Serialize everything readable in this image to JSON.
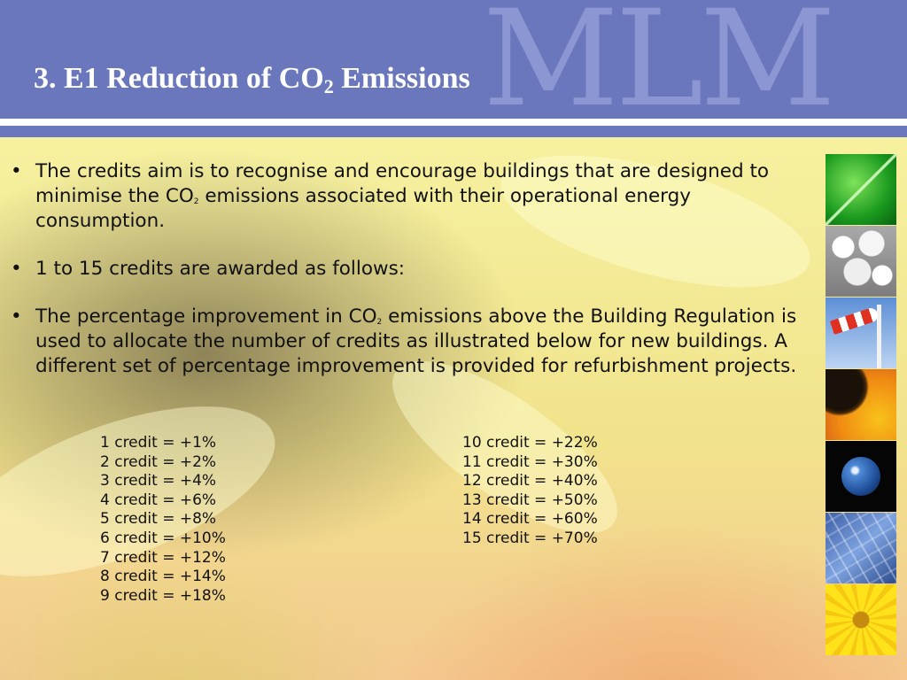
{
  "header": {
    "watermark": "MLM",
    "title_main": "3. E1 Reduction of CO",
    "title_sub": "2",
    "title_end": " Emissions"
  },
  "bullets": [
    {
      "pre": "The credits aim is to recognise and encourage buildings that are designed to minimise the CO",
      "sub": "2",
      "post": " emissions associated with their operational energy consumption."
    },
    {
      "text": "1 to 15 credits are awarded as follows:"
    },
    {
      "pre": "The percentage improvement in CO",
      "sub": "2",
      "post": " emissions above the Building Regulation is used to allocate the number of credits as illustrated below for new buildings. A different set of percentage improvement is provided for refurbishment projects."
    }
  ],
  "credits_col1": [
    "1 credit = +1%",
    "2 credit = +2%",
    "3 credit = +4%",
    "4 credit = +6%",
    "5 credit = +8%",
    "6 credit = +10%",
    "7 credit = +12%",
    "8 credit = +14%",
    "9 credit = +18%"
  ],
  "credits_col2": [
    "10 credit = +22%",
    "11 credit = +30%",
    "12 credit = +40%",
    "13 credit = +50%",
    "14 credit = +60%",
    "15 credit = +70%"
  ],
  "bullet_glyph": "•",
  "colors": {
    "header": "#6a77bd",
    "watermark": "#8b96d2",
    "title": "#ffffff"
  }
}
